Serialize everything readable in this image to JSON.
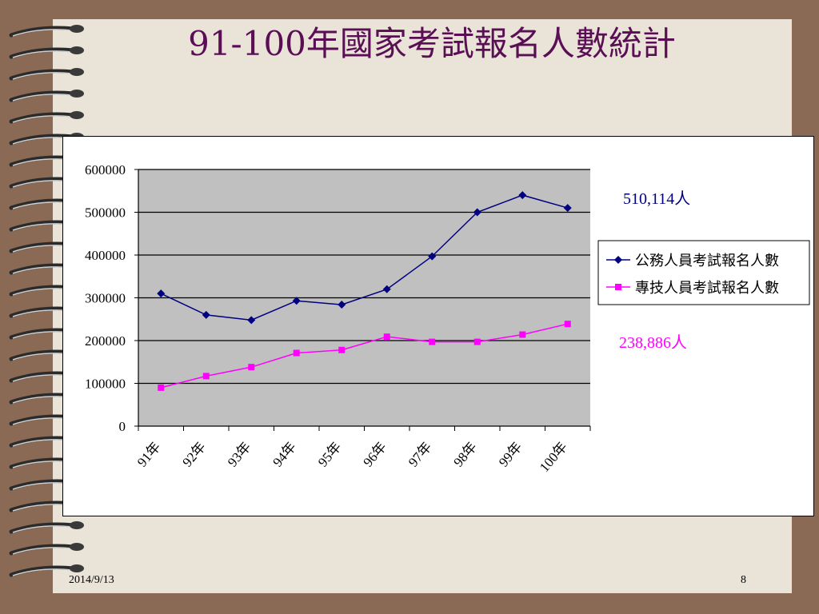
{
  "slide": {
    "title": "91-100年國家考試報名人數統計",
    "footer_date": "2014/9/13",
    "page_number": "8"
  },
  "colors": {
    "background": "#8a6a54",
    "paper": "#e9e3d8",
    "title": "#5a0f55",
    "plot_area": "#c0c0c0",
    "series1": "#000080",
    "series2": "#ff00ff"
  },
  "chart_data": {
    "type": "line",
    "title": "",
    "xlabel": "",
    "ylabel": "",
    "categories": [
      "91年",
      "92年",
      "93年",
      "94年",
      "95年",
      "96年",
      "97年",
      "98年",
      "99年",
      "100年"
    ],
    "ylim": [
      0,
      600000
    ],
    "yticks": [
      "0",
      "100000",
      "200000",
      "300000",
      "400000",
      "500000",
      "600000"
    ],
    "grid": true,
    "legend_position": "right",
    "series": [
      {
        "name": "公務人員考試報名人數",
        "marker": "diamond",
        "color": "#000080",
        "values": [
          310000,
          260000,
          248000,
          293000,
          284000,
          320000,
          397000,
          500000,
          540000,
          510114
        ]
      },
      {
        "name": "專技人員考試報名人數",
        "marker": "square",
        "color": "#ff00ff",
        "values": [
          90000,
          117000,
          138000,
          171000,
          178000,
          209000,
          197000,
          197000,
          214000,
          238886
        ]
      }
    ],
    "annotations": [
      {
        "text": "510,114人",
        "color": "#000080"
      },
      {
        "text": "238,886人",
        "color": "#ff00ff"
      }
    ]
  }
}
